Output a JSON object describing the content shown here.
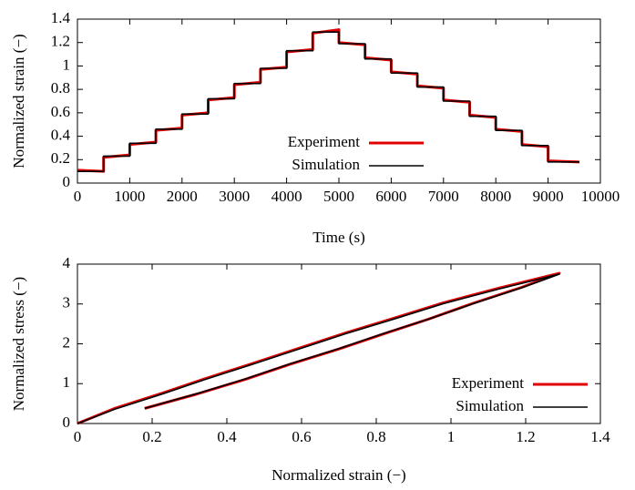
{
  "chart_data": [
    {
      "type": "line",
      "x_label": "Time (s)",
      "y_label": "Normalized strain (−)",
      "xlim": [
        0,
        10000
      ],
      "xticks": [
        0,
        1000,
        2000,
        3000,
        4000,
        5000,
        6000,
        7000,
        8000,
        9000,
        10000
      ],
      "ylim": [
        0,
        1.4
      ],
      "yticks": [
        0,
        0.2,
        0.4,
        0.6,
        0.8,
        1,
        1.2,
        1.4
      ],
      "legend": "center",
      "series": [
        {
          "name": "Experiment",
          "color": "#e00000",
          "x": [
            0,
            500,
            500,
            1000,
            1000,
            1500,
            1500,
            2000,
            2000,
            2500,
            2500,
            3000,
            3000,
            3500,
            3500,
            4000,
            4000,
            4500,
            4500,
            5000,
            5000,
            5500,
            5500,
            6000,
            6000,
            6500,
            6500,
            7000,
            7000,
            7500,
            7500,
            8000,
            8000,
            8500,
            8500,
            9000,
            9000,
            9600
          ],
          "values": [
            0.11,
            0.1,
            0.22,
            0.24,
            0.33,
            0.35,
            0.45,
            0.47,
            0.58,
            0.6,
            0.71,
            0.73,
            0.84,
            0.86,
            0.97,
            0.99,
            1.12,
            1.14,
            1.28,
            1.31,
            1.2,
            1.18,
            1.07,
            1.05,
            0.95,
            0.93,
            0.83,
            0.81,
            0.71,
            0.69,
            0.58,
            0.56,
            0.46,
            0.44,
            0.33,
            0.31,
            0.19,
            0.18
          ]
        },
        {
          "name": "Simulation",
          "color": "#000000",
          "x": [
            0,
            500,
            500,
            1000,
            1000,
            1500,
            1500,
            2000,
            2000,
            2500,
            2500,
            3000,
            3000,
            3500,
            3500,
            4000,
            4000,
            4500,
            4500,
            5000,
            5000,
            5500,
            5500,
            6000,
            6000,
            6500,
            6500,
            7000,
            7000,
            7500,
            7500,
            8000,
            8000,
            8500,
            8500,
            9000,
            9000,
            9600
          ],
          "values": [
            0.1,
            0.1,
            0.23,
            0.23,
            0.34,
            0.34,
            0.46,
            0.46,
            0.59,
            0.59,
            0.72,
            0.72,
            0.85,
            0.85,
            0.98,
            0.98,
            1.13,
            1.13,
            1.29,
            1.29,
            1.19,
            1.19,
            1.06,
            1.06,
            0.94,
            0.94,
            0.82,
            0.82,
            0.7,
            0.7,
            0.57,
            0.57,
            0.45,
            0.45,
            0.32,
            0.32,
            0.18,
            0.18
          ]
        }
      ]
    },
    {
      "type": "line",
      "x_label": "Normalized strain (−)",
      "y_label": "Normalized stress (−)",
      "xlim": [
        0,
        1.4
      ],
      "xticks": [
        0,
        0.2,
        0.4,
        0.6,
        0.8,
        1,
        1.2,
        1.4
      ],
      "ylim": [
        0,
        4
      ],
      "yticks": [
        0,
        1,
        2,
        3,
        4
      ],
      "legend": "lower right",
      "series": [
        {
          "name": "Experiment",
          "color": "#e00000",
          "x": [
            0,
            0.1,
            0.23,
            0.34,
            0.46,
            0.59,
            0.72,
            0.85,
            0.98,
            1.13,
            1.29,
            1.19,
            1.06,
            0.94,
            0.82,
            0.7,
            0.57,
            0.45,
            0.32,
            0.18
          ],
          "values": [
            0,
            0.38,
            0.77,
            1.12,
            1.48,
            1.88,
            2.28,
            2.65,
            3.03,
            3.4,
            3.77,
            3.42,
            3.02,
            2.62,
            2.25,
            1.87,
            1.49,
            1.11,
            0.74,
            0.38
          ]
        },
        {
          "name": "Simulation",
          "color": "#000000",
          "x": [
            0,
            0.1,
            0.23,
            0.34,
            0.46,
            0.59,
            0.72,
            0.85,
            0.98,
            1.13,
            1.29,
            1.19,
            1.06,
            0.94,
            0.82,
            0.7,
            0.57,
            0.45,
            0.32,
            0.18
          ],
          "values": [
            0,
            0.36,
            0.75,
            1.1,
            1.46,
            1.86,
            2.26,
            2.63,
            3.01,
            3.38,
            3.75,
            3.41,
            3.01,
            2.62,
            2.26,
            1.88,
            1.5,
            1.12,
            0.75,
            0.38
          ]
        }
      ]
    }
  ]
}
